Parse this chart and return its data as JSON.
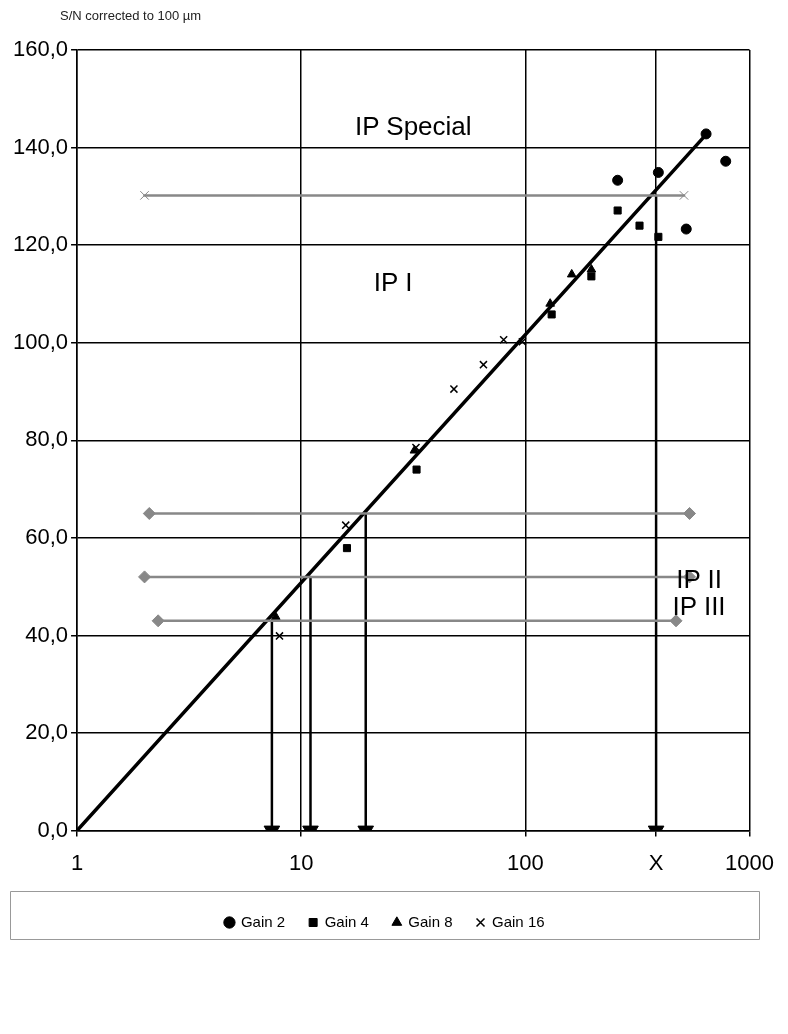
{
  "chart_data": {
    "type": "scatter",
    "ylabel": "S/N corrected to 100 µm",
    "log": "x",
    "grid": true,
    "legend": "bottom",
    "xlim": [
      1,
      1000
    ],
    "xticks": [
      1,
      10,
      100,
      {
        "value": 383,
        "label": "X"
      },
      1000
    ],
    "ylim": [
      0,
      160
    ],
    "yticks": [
      {
        "value": 0,
        "label": "0,0"
      },
      {
        "value": 20,
        "label": "20,0"
      },
      {
        "value": 40,
        "label": "40,0"
      },
      {
        "value": 60,
        "label": "60,0"
      },
      {
        "value": 80,
        "label": "80,0"
      },
      {
        "value": 100,
        "label": "100,0"
      },
      {
        "value": 120,
        "label": "120,0"
      },
      {
        "value": 140,
        "label": "140,0"
      },
      {
        "value": 160,
        "label": "160,0"
      }
    ],
    "annotations": [
      "IP Special",
      "IP I",
      "IP II",
      "IP III"
    ],
    "series": [
      {
        "type": "line",
        "color": "#888888",
        "marker": "cross",
        "x": [
          2,
          510
        ],
        "values": [
          130.2,
          130.2
        ]
      },
      {
        "type": "line",
        "color": "#888888",
        "marker": "diamond",
        "x": [
          2.1,
          540
        ],
        "values": [
          65,
          65
        ]
      },
      {
        "type": "line",
        "color": "#888888",
        "marker": "diamond",
        "x": [
          2,
          540
        ],
        "values": [
          52,
          52
        ]
      },
      {
        "type": "line",
        "color": "#888888",
        "marker": "diamond",
        "x": [
          2.3,
          470
        ],
        "values": [
          43,
          43
        ]
      },
      {
        "type": "line",
        "color": "#000000",
        "marker": "triangle",
        "x": [
          7.4,
          7.4
        ],
        "values": [
          43,
          0
        ]
      },
      {
        "type": "line",
        "color": "#000000",
        "marker": "triangle",
        "x": [
          11,
          11
        ],
        "values": [
          52,
          0
        ]
      },
      {
        "type": "line",
        "color": "#000000",
        "marker": "triangle",
        "x": [
          19.4,
          19.4
        ],
        "values": [
          65,
          0
        ]
      },
      {
        "type": "line",
        "color": "#000000",
        "marker": "triangle",
        "x": [
          383,
          383
        ],
        "values": [
          130.2,
          0
        ]
      },
      {
        "type": "line",
        "color": "#000000",
        "marker": "none",
        "x": [
          1,
          650
        ],
        "values": [
          0,
          143
        ]
      },
      {
        "name": "Gain 2",
        "color": "#000000",
        "marker": "circle",
        "x": [
          258,
          392,
          640,
          783,
          522
        ],
        "values": [
          133.3,
          134.9,
          142.8,
          137.2,
          123.3
        ]
      },
      {
        "name": "Gain 4",
        "color": "#000000",
        "marker": "square",
        "x": [
          258,
          323,
          392,
          197,
          131,
          32.7,
          16
        ],
        "values": [
          127.1,
          124,
          121.7,
          113.6,
          105.8,
          74,
          57.9
        ]
      },
      {
        "name": "Gain 8",
        "color": "#000000",
        "marker": "triangle",
        "x": [
          197,
          161,
          129,
          32,
          7.7
        ],
        "values": [
          115,
          114,
          108,
          77.9,
          43.8
        ]
      },
      {
        "name": "Gain 16",
        "color": "#000000",
        "marker": "cross",
        "x": [
          80,
          97,
          48,
          65,
          15.8,
          8,
          32.5
        ],
        "values": [
          100.6,
          100.2,
          90.5,
          95.5,
          62.6,
          39.9,
          78.5
        ]
      }
    ]
  }
}
